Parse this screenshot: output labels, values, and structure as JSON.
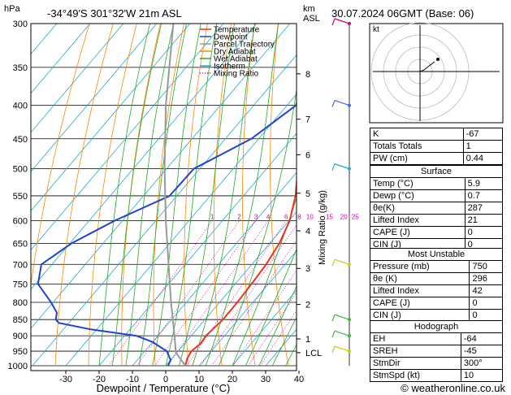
{
  "header": {
    "hpa_label": "hPa",
    "location": "-34°49'S 301°32'W 21m ASL",
    "km_label": "km",
    "asl_label": "ASL",
    "datetime": "30.07.2024 06GMT (Base: 06)"
  },
  "x_axis": {
    "title": "Dewpoint / Temperature (°C)"
  },
  "mixing_axis_title": "Mixing Ratio (g/kg)",
  "legend": [
    {
      "label": "Temperature",
      "color": "#ee3322"
    },
    {
      "label": "Dewpoint",
      "color": "#2244cc"
    },
    {
      "label": "Parcel Trajectory",
      "color": "#999999"
    },
    {
      "label": "Dry Adiabat",
      "color": "#ff8800"
    },
    {
      "label": "Wet Adiabat",
      "color": "#22aa22"
    },
    {
      "label": "Isotherm",
      "color": "#22aacc"
    },
    {
      "label": "Mixing Ratio",
      "color": "#dd00aa"
    }
  ],
  "hodograph": {
    "label": "kt"
  },
  "indices": [
    {
      "label": "K",
      "value": "-67"
    },
    {
      "label": "Totals Totals",
      "value": "1"
    },
    {
      "label": "PW (cm)",
      "value": "0.44"
    }
  ],
  "surface": {
    "title": "Surface",
    "rows": [
      {
        "label": "Temp (°C)",
        "value": "5.9"
      },
      {
        "label": "Dewp (°C)",
        "value": "0.7"
      },
      {
        "label": "θe(K)",
        "value": "287"
      },
      {
        "label": "Lifted Index",
        "value": "21"
      },
      {
        "label": "CAPE (J)",
        "value": "0"
      },
      {
        "label": "CIN (J)",
        "value": "0"
      }
    ]
  },
  "most_unstable": {
    "title": "Most Unstable",
    "rows": [
      {
        "label": "Pressure (mb)",
        "value": "750"
      },
      {
        "label": "θe (K)",
        "value": "296"
      },
      {
        "label": "Lifted Index",
        "value": "42"
      },
      {
        "label": "CAPE (J)",
        "value": "0"
      },
      {
        "label": "CIN (J)",
        "value": "0"
      }
    ]
  },
  "hodograph_table": {
    "title": "Hodograph",
    "rows": [
      {
        "label": "EH",
        "value": "-64"
      },
      {
        "label": "SREH",
        "value": "-45"
      },
      {
        "label": "StmDir",
        "value": "300°"
      },
      {
        "label": "StmSpd (kt)",
        "value": "10"
      }
    ]
  },
  "copyright": "© weatheronline.co.uk",
  "chart_data": {
    "type": "line",
    "title": "-34°49'S 301°32'W 21m ASL",
    "xlabel": "Dewpoint / Temperature (°C)",
    "ylabel": "hPa",
    "xlim": [
      -40,
      40
    ],
    "x_ticks": [
      -30,
      -20,
      -10,
      0,
      10,
      20,
      30,
      40
    ],
    "pressure_levels": [
      300,
      350,
      400,
      450,
      500,
      550,
      600,
      650,
      700,
      750,
      800,
      850,
      900,
      950,
      1000
    ],
    "y_scale": "log",
    "km_ticks": [
      {
        "label": "8",
        "p": 358
      },
      {
        "label": "7",
        "p": 420
      },
      {
        "label": "6",
        "p": 476
      },
      {
        "label": "5",
        "p": 545
      },
      {
        "label": "4",
        "p": 622
      },
      {
        "label": "3",
        "p": 710
      },
      {
        "label": "2",
        "p": 806
      },
      {
        "label": "1",
        "p": 910
      },
      {
        "label": "LCL",
        "p": 955
      }
    ],
    "mixing_ratio_labels": [
      "1",
      "2",
      "3",
      "4",
      "6",
      "8",
      "10",
      "15",
      "20",
      "25"
    ],
    "mixing_ratios": [
      1,
      2,
      3,
      4,
      6,
      8,
      10,
      15,
      20,
      25
    ],
    "series": [
      {
        "name": "Temperature",
        "color": "#ee3322",
        "points": [
          [
            1000,
            5.9
          ],
          [
            975,
            4.6
          ],
          [
            950,
            4.0
          ],
          [
            925,
            4.8
          ],
          [
            900,
            4.4
          ],
          [
            850,
            5.4
          ],
          [
            800,
            5.3
          ],
          [
            750,
            4.9
          ],
          [
            700,
            4.3
          ],
          [
            650,
            2.9
          ],
          [
            600,
            0.2
          ],
          [
            550,
            -4.4
          ],
          [
            500,
            -10.6
          ],
          [
            450,
            -18.3
          ],
          [
            400,
            -26.3
          ],
          [
            350,
            -34.1
          ],
          [
            300,
            -42.6
          ]
        ]
      },
      {
        "name": "Dewpoint",
        "color": "#2244cc",
        "points": [
          [
            1000,
            0.7
          ],
          [
            980,
            0.0
          ],
          [
            950,
            -3.4
          ],
          [
            920,
            -10.0
          ],
          [
            900,
            -16.4
          ],
          [
            880,
            -31.7
          ],
          [
            860,
            -43.0
          ],
          [
            850,
            -44.8
          ],
          [
            830,
            -46.2
          ],
          [
            800,
            -50.6
          ],
          [
            750,
            -59.2
          ],
          [
            700,
            -63.2
          ],
          [
            650,
            -59.5
          ],
          [
            600,
            -52.3
          ],
          [
            550,
            -42.2
          ],
          [
            500,
            -41.8
          ],
          [
            450,
            -32.2
          ],
          [
            400,
            -27.3
          ],
          [
            350,
            -34.1
          ],
          [
            300,
            -42.6
          ]
        ]
      },
      {
        "name": "Parcel Trajectory",
        "color": "#999999",
        "points": [
          [
            1000,
            5.9
          ],
          [
            955,
            -0.3
          ],
          [
            900,
            -5.0
          ],
          [
            800,
            -14.6
          ],
          [
            700,
            -25.0
          ],
          [
            600,
            -37.0
          ],
          [
            500,
            -50.6
          ],
          [
            400,
            -66.4
          ],
          [
            300,
            -85.0
          ]
        ]
      }
    ],
    "wind_barbs": [
      {
        "p": 300,
        "color": "#cc0077"
      },
      {
        "p": 400,
        "color": "#4466dd"
      },
      {
        "p": 500,
        "color": "#22aacc"
      },
      {
        "p": 700,
        "color": "#cccc00"
      },
      {
        "p": 850,
        "color": "#33bb33"
      },
      {
        "p": 900,
        "color": "#33bb33"
      },
      {
        "p": 950,
        "color": "#cccc00"
      }
    ]
  }
}
